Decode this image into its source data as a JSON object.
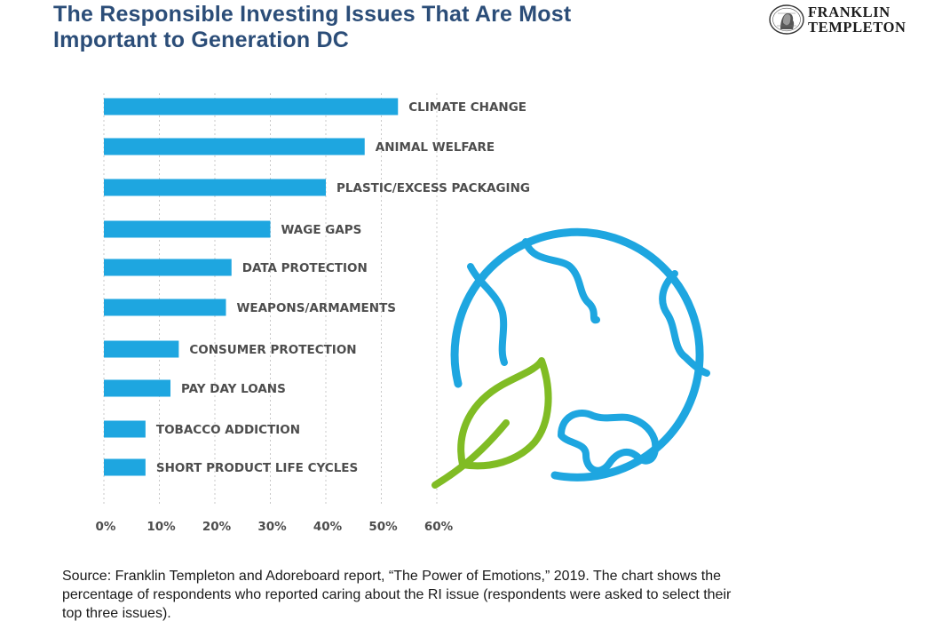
{
  "title": "The Responsible Investing Issues That Are Most Important to Generation DC",
  "logo": {
    "line1": "FRANKLIN",
    "line2": "TEMPLETON"
  },
  "colors": {
    "bar": "#1ea6e0",
    "globe": "#1ea6e0",
    "leaf": "#80bc24",
    "title": "#2b4d78",
    "grid": "#c8c8c8"
  },
  "chart_data": {
    "type": "bar",
    "orientation": "horizontal",
    "categories": [
      "CLIMATE CHANGE",
      "ANIMAL WELFARE",
      "PLASTIC/EXCESS PACKAGING",
      "WAGE GAPS",
      "DATA PROTECTION",
      "WEAPONS/ARMAMENTS",
      "CONSUMER PROTECTION",
      "PAY DAY LOANS",
      "TOBACCO ADDICTION",
      "SHORT PRODUCT LIFE CYCLES"
    ],
    "values": [
      53,
      47,
      40,
      30,
      23,
      22,
      13.5,
      12,
      7.5,
      7.5
    ],
    "xlim": [
      0,
      60
    ],
    "xticks": [
      "0%",
      "10%",
      "20%",
      "30%",
      "40%",
      "50%",
      "60%"
    ],
    "grid": "vertical dotted",
    "xlabel": "",
    "ylabel": ""
  },
  "source": "Source: Franklin Templeton and Adoreboard report, “The Power of Emotions,” 2019. The chart shows the percentage of respondents who reported caring about the RI issue (respondents were asked to select their top three issues)."
}
